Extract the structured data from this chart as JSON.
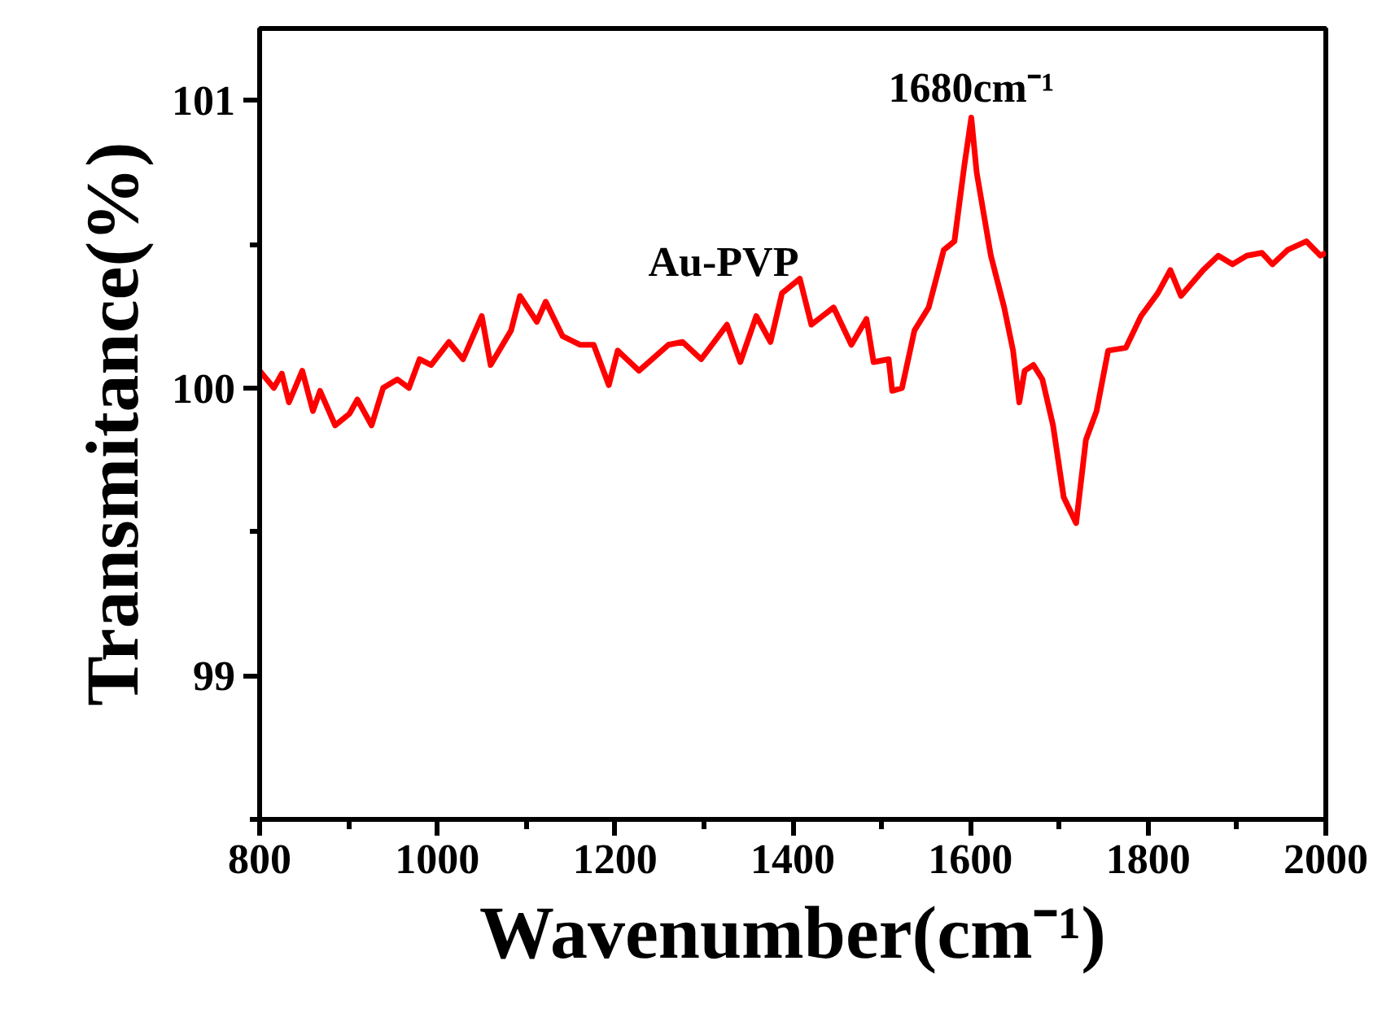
{
  "chart_data": {
    "type": "line",
    "xlabel": "Wavenumber(cm⁻¹)",
    "ylabel": "Transmitance(%)",
    "xlim": [
      800,
      2000
    ],
    "ylim": [
      98.5,
      101.25
    ],
    "xticks": [
      800,
      {
        "value": 900,
        "label": null
      },
      1000,
      {
        "value": 1100,
        "label": null
      },
      1200,
      {
        "value": 1300,
        "label": null
      },
      1400,
      {
        "value": 1500,
        "label": null
      },
      1600,
      {
        "value": 1700,
        "label": null
      },
      1800,
      {
        "value": 1900,
        "label": null
      },
      2000
    ],
    "yticks": [
      {
        "value": 98.5,
        "label": null
      },
      99,
      {
        "value": 99.5,
        "label": null
      },
      100,
      {
        "value": 100.5,
        "label": null
      },
      101
    ],
    "grid": false,
    "marker": "none",
    "line_style": "solid",
    "annotations": [
      "Au-PVP",
      {
        "text": "1680cm⁻¹",
        "x": 1601,
        "y": 100.94
      }
    ],
    "series": [
      {
        "color": "#ff0000",
        "x": [
          800,
          816,
          825,
          833,
          848,
          860,
          868,
          885,
          901,
          910,
          926,
          939,
          955,
          968,
          980,
          993,
          1013,
          1029,
          1050,
          1060,
          1083,
          1093,
          1112,
          1122,
          1141,
          1161,
          1176,
          1193,
          1203,
          1227,
          1260,
          1276,
          1297,
          1326,
          1341,
          1359,
          1375,
          1388,
          1408,
          1421,
          1446,
          1466,
          1483,
          1491,
          1508,
          1512,
          1523,
          1537,
          1553,
          1570,
          1582,
          1593,
          1601,
          1607,
          1623,
          1638,
          1648,
          1655,
          1661,
          1671,
          1681,
          1693,
          1705,
          1719,
          1730,
          1742,
          1755,
          1775,
          1792,
          1811,
          1825,
          1837,
          1862,
          1879,
          1895,
          1911,
          1928,
          1940,
          1957,
          1978,
          1994,
          2000
        ],
        "values": [
          100.06,
          100.0,
          100.05,
          99.95,
          100.06,
          99.92,
          99.99,
          99.87,
          99.91,
          99.96,
          99.87,
          100.0,
          100.03,
          100.0,
          100.1,
          100.08,
          100.16,
          100.1,
          100.25,
          100.08,
          100.2,
          100.32,
          100.23,
          100.3,
          100.18,
          100.15,
          100.15,
          100.01,
          100.13,
          100.06,
          100.15,
          100.16,
          100.1,
          100.22,
          100.09,
          100.25,
          100.16,
          100.33,
          100.38,
          100.22,
          100.28,
          100.15,
          100.24,
          100.09,
          100.1,
          99.99,
          100.0,
          100.2,
          100.28,
          100.48,
          100.51,
          100.77,
          100.94,
          100.75,
          100.46,
          100.28,
          100.13,
          99.95,
          100.06,
          100.08,
          100.03,
          99.87,
          99.62,
          99.53,
          99.82,
          99.92,
          100.13,
          100.14,
          100.25,
          100.33,
          100.41,
          100.32,
          100.41,
          100.46,
          100.43,
          100.46,
          100.47,
          100.43,
          100.48,
          100.51,
          100.46,
          100.47
        ]
      }
    ]
  }
}
